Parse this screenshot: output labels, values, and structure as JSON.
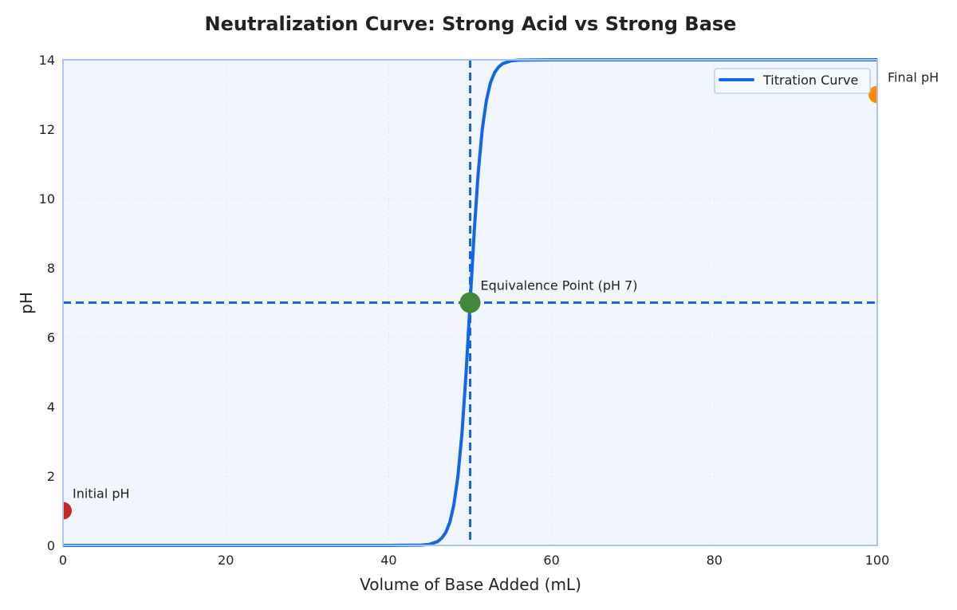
{
  "chart_data": {
    "type": "line",
    "title": "Neutralization Curve: Strong Acid vs Strong Base",
    "xlabel": "Volume of Base Added (mL)",
    "ylabel": "pH",
    "xlim": [
      0,
      100
    ],
    "ylim": [
      0,
      14
    ],
    "xticks": [
      0,
      20,
      40,
      60,
      80,
      100
    ],
    "yticks": [
      0,
      2,
      4,
      6,
      8,
      10,
      12,
      14
    ],
    "grid": true,
    "legend_position": "top-right",
    "series": [
      {
        "name": "Titration Curve",
        "color": "#1565e8",
        "x": [
          0,
          10,
          20,
          30,
          40,
          44,
          45,
          46,
          46.5,
          47,
          47.5,
          48,
          48.5,
          49,
          49.5,
          50,
          50.5,
          51,
          51.5,
          52,
          52.5,
          53,
          53.5,
          54,
          55,
          56,
          60,
          70,
          80,
          90,
          100
        ],
        "y": [
          0,
          0,
          0,
          0,
          0.0001,
          0.01,
          0.03,
          0.11,
          0.21,
          0.37,
          0.66,
          1.17,
          1.99,
          3.24,
          4.96,
          7,
          9.04,
          10.76,
          12.01,
          12.83,
          13.34,
          13.63,
          13.79,
          13.89,
          13.97,
          13.99,
          14,
          14,
          14,
          14,
          14
        ]
      }
    ],
    "reference_lines": {
      "vertical_x": 50,
      "horizontal_y": 7,
      "color": "#1565e8"
    },
    "annotations": [
      {
        "label": "Initial pH",
        "x": 0,
        "y": 1,
        "color": "#c62828"
      },
      {
        "label": "Equivalence Point (pH 7)",
        "x": 50,
        "y": 7,
        "color": "#43883a"
      },
      {
        "label": "Final pH",
        "x": 100,
        "y": 13,
        "color": "#fb8c00"
      }
    ],
    "colors": {
      "plot_background": "#f1f6fd",
      "frame": "#a5c6f5"
    }
  }
}
